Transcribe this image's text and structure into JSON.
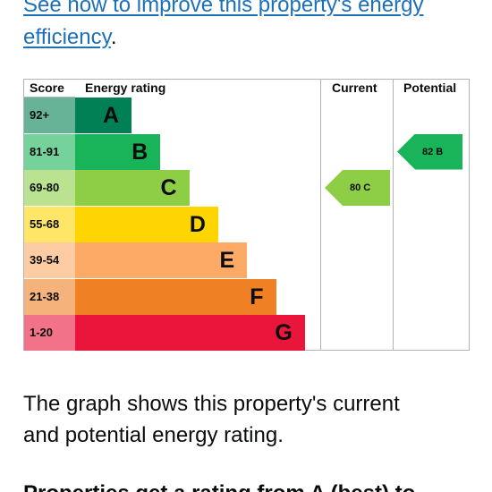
{
  "intro": {
    "link_line1": "See how to improve this property's energy",
    "link_line2": "efficiency",
    "punct": "."
  },
  "epc": {
    "headers": {
      "score": "Score",
      "rating": "Energy rating",
      "current": "Current",
      "potential": "Potential"
    },
    "bands": [
      {
        "score": "92+",
        "letter": "A",
        "color": "#008054",
        "score_bg": "#66b398"
      },
      {
        "score": "81-91",
        "letter": "B",
        "color": "#19b459",
        "score_bg": "#75d29b"
      },
      {
        "score": "69-80",
        "letter": "C",
        "color": "#8dce46",
        "score_bg": "#bbe290"
      },
      {
        "score": "55-68",
        "letter": "D",
        "color": "#ffd500",
        "score_bg": "#ffe666"
      },
      {
        "score": "39-54",
        "letter": "E",
        "color": "#fcaa65",
        "score_bg": "#fdcca3"
      },
      {
        "score": "21-38",
        "letter": "F",
        "color": "#ef8023",
        "score_bg": "#f5b37b"
      },
      {
        "score": "1-20",
        "letter": "G",
        "color": "#e9153b",
        "score_bg": "#f27389"
      }
    ],
    "current": {
      "label": "80 C",
      "color": "#8dce46"
    },
    "potential": {
      "label": "82 B",
      "color": "#19b459"
    }
  },
  "summary": {
    "line1": "The graph shows this property's current",
    "line2": "and potential energy rating."
  },
  "cut_text": "Properties get a rating from A (best) to"
}
